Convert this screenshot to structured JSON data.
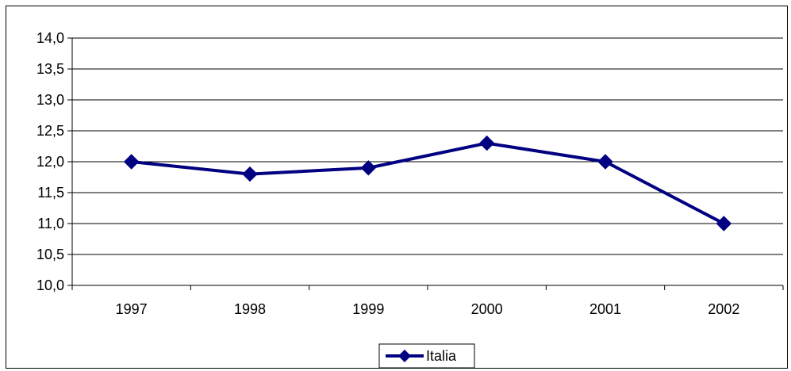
{
  "chart_data": {
    "type": "line",
    "categories": [
      "1997",
      "1998",
      "1999",
      "2000",
      "2001",
      "2002"
    ],
    "series": [
      {
        "name": "Italia",
        "values": [
          12.0,
          11.8,
          11.9,
          12.3,
          12.0,
          11.0
        ]
      }
    ],
    "ylim": [
      10.0,
      14.0
    ],
    "ystep": 0.5,
    "ytick_labels": [
      "10,0",
      "10,5",
      "11,0",
      "11,5",
      "12,0",
      "12,5",
      "13,0",
      "13,5",
      "14,0"
    ],
    "grid": true,
    "legend_position": "bottom",
    "colors": {
      "series": "#000080",
      "grid": "#000000",
      "background": "#ffffff"
    },
    "marker": "diamond"
  }
}
